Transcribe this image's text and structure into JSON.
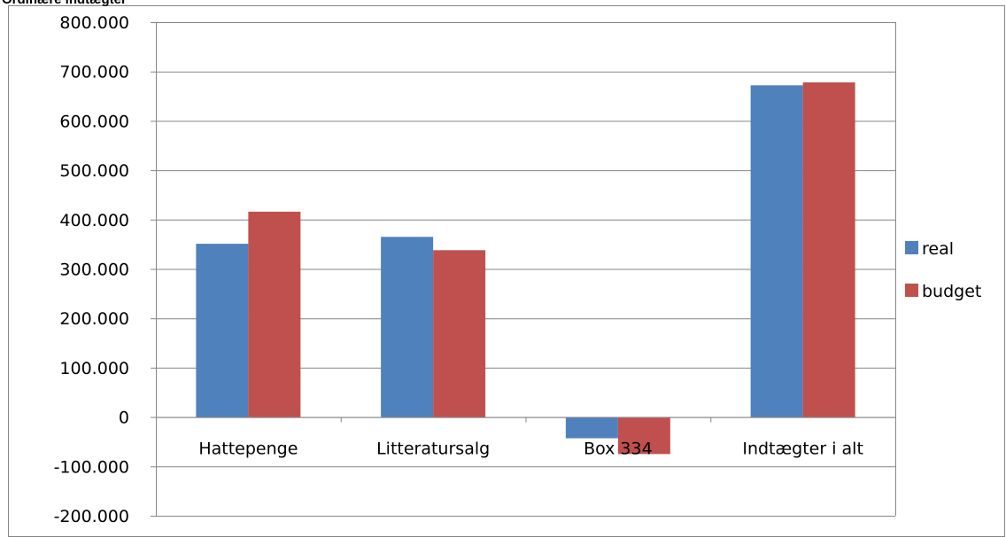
{
  "chart_data": {
    "type": "bar",
    "title": "Ordinære indtægter",
    "categories": [
      "Hattepenge",
      "Litteratursalg",
      "Box 334",
      "Indtægter i alt"
    ],
    "series": [
      {
        "name": "real",
        "color": "#4f81bd",
        "values": [
          351000,
          365000,
          -43000,
          672000
        ]
      },
      {
        "name": "budget",
        "color": "#c0504d",
        "values": [
          416000,
          338000,
          -75000,
          678000
        ]
      }
    ],
    "ylim": [
      -200000,
      800000
    ],
    "yticks": [
      800000,
      700000,
      600000,
      500000,
      400000,
      300000,
      200000,
      100000,
      0,
      -100000,
      -200000
    ],
    "ytick_labels": [
      "800.000",
      "700.000",
      "600.000",
      "500.000",
      "400.000",
      "300.000",
      "200.000",
      "100.000",
      "0",
      "-100.000",
      "-200.000"
    ],
    "grid": true,
    "legend_position": "right"
  }
}
